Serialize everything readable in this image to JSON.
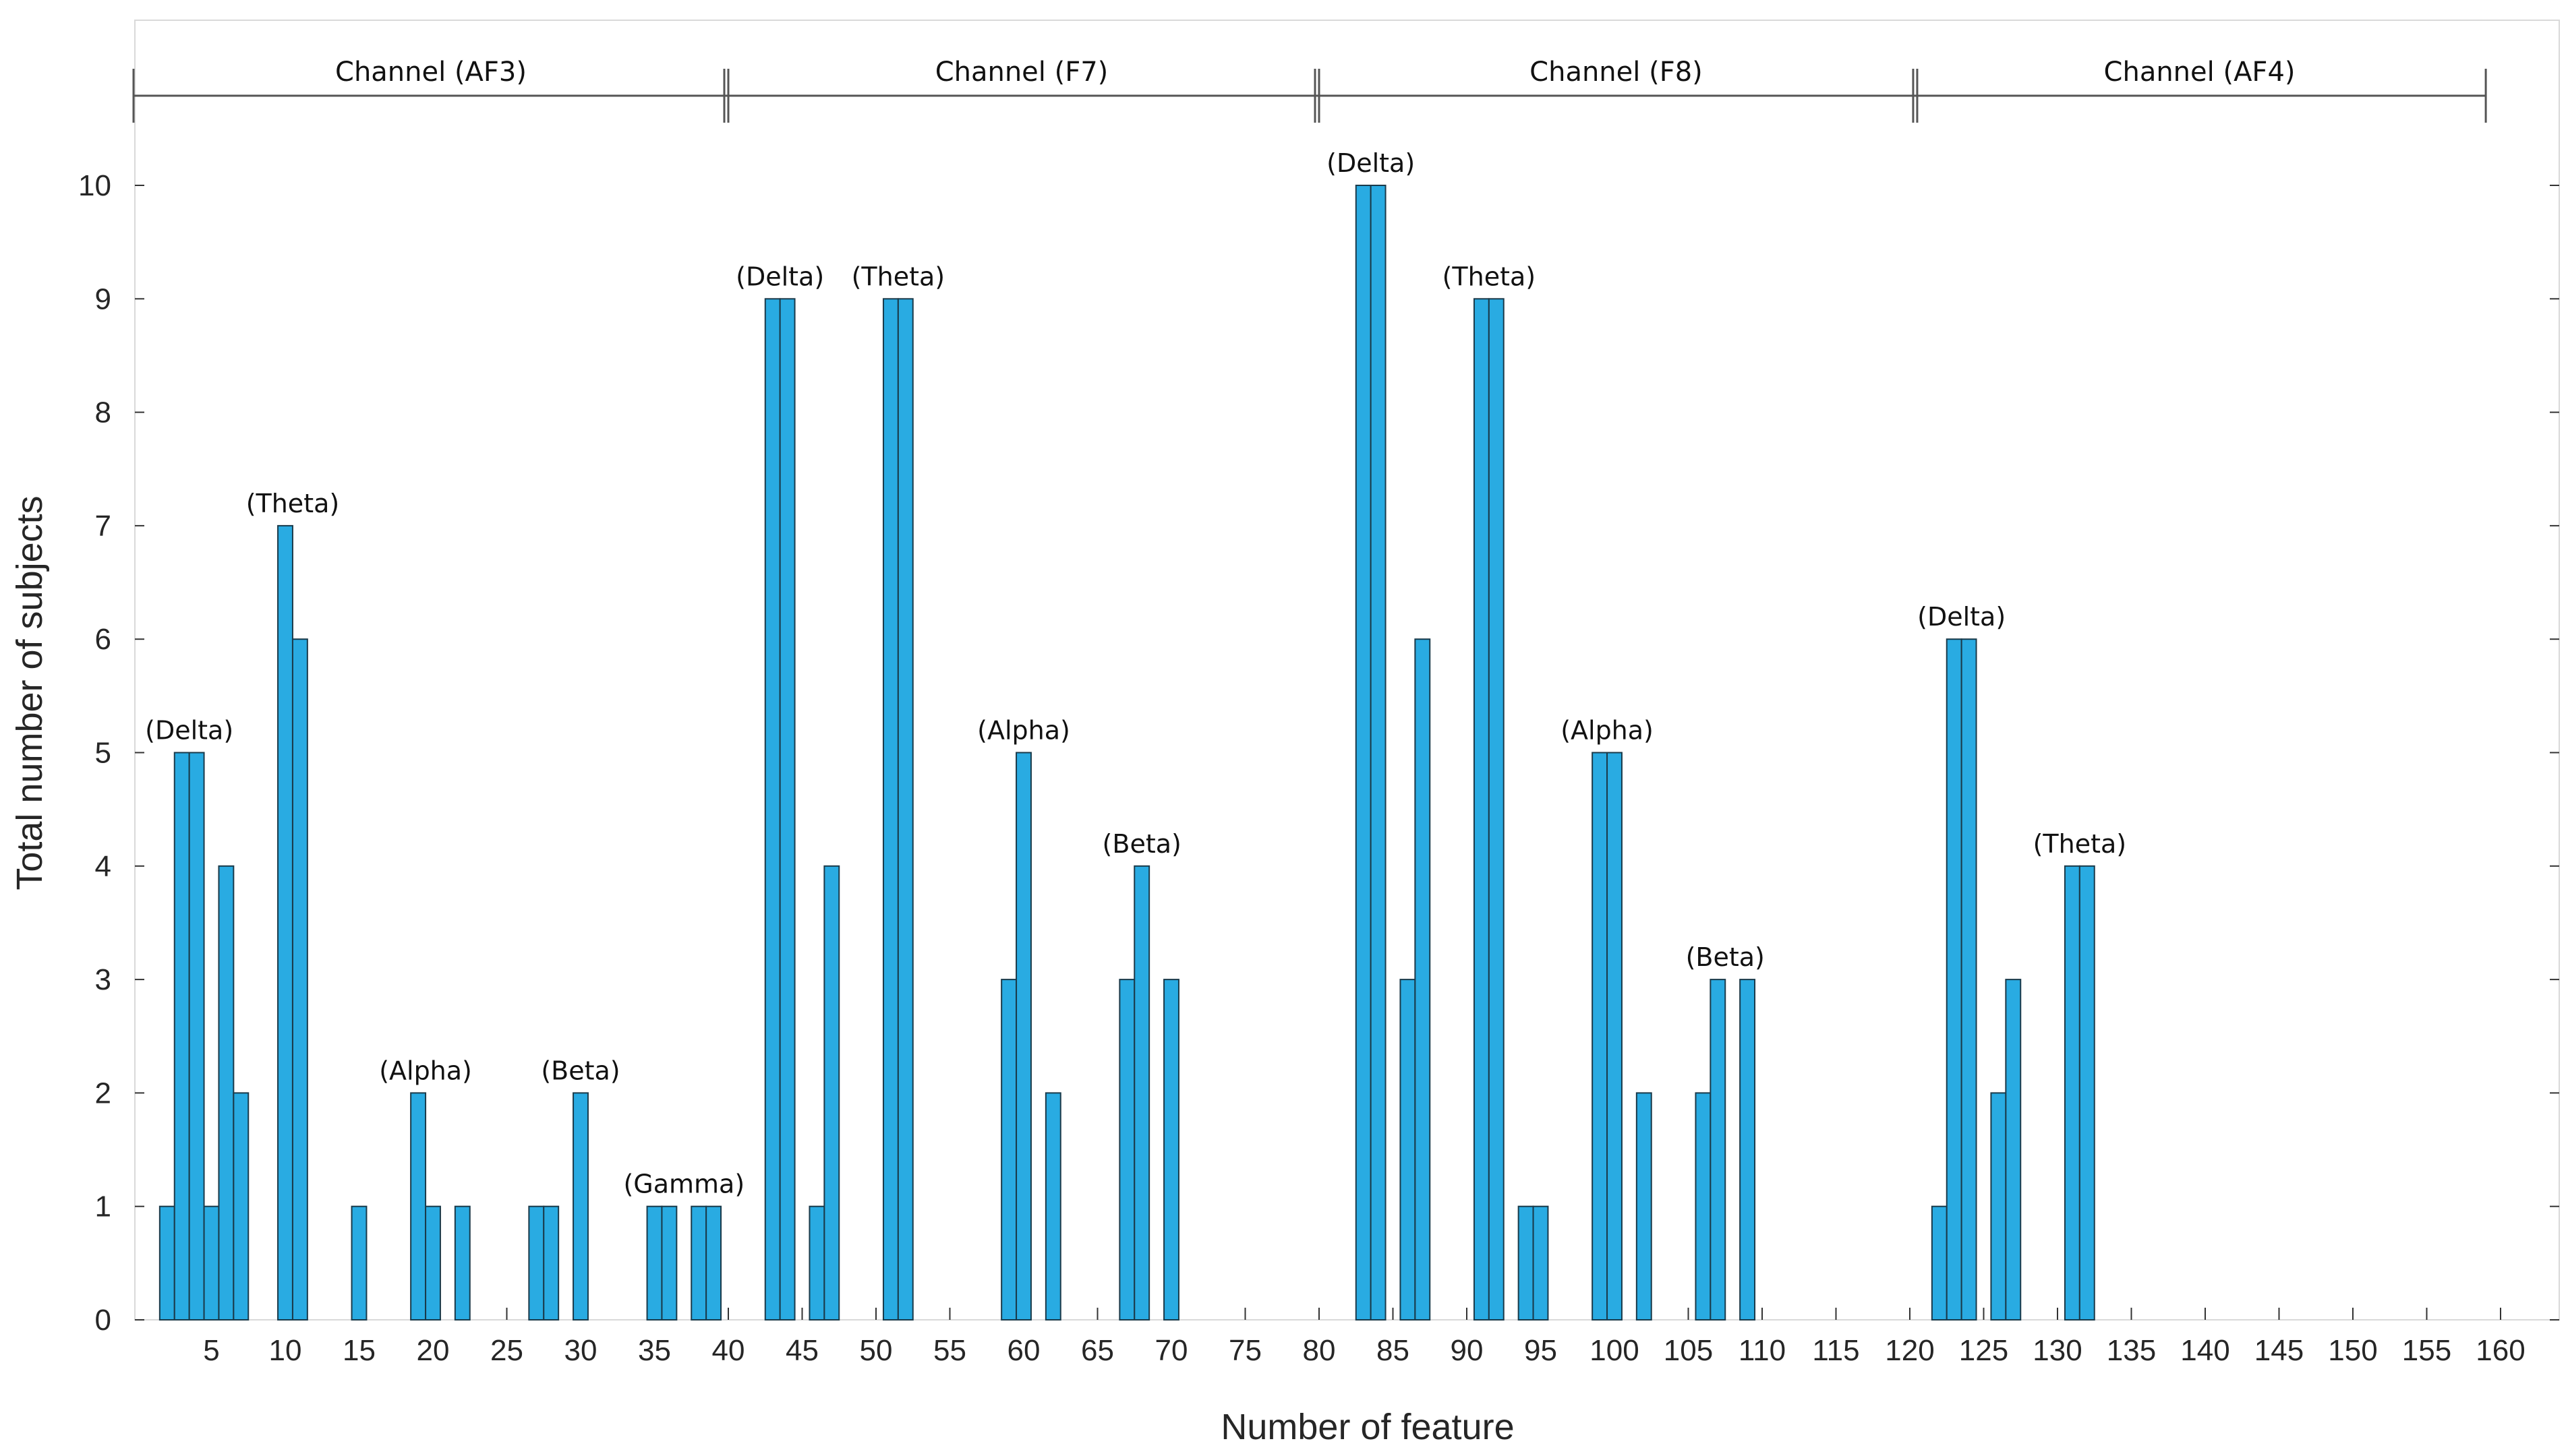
{
  "chart_data": {
    "type": "bar",
    "title": "",
    "xlabel": "Number of feature",
    "ylabel": "Total number of subjects",
    "xlim": [
      0,
      160
    ],
    "ylim": [
      0,
      11
    ],
    "xticks": [
      5,
      10,
      15,
      20,
      25,
      30,
      35,
      40,
      45,
      50,
      55,
      60,
      65,
      70,
      75,
      80,
      85,
      90,
      95,
      100,
      105,
      110,
      115,
      120,
      125,
      130,
      135,
      140,
      145,
      150,
      155,
      160
    ],
    "yticks": [
      0,
      1,
      2,
      3,
      4,
      5,
      6,
      7,
      8,
      9,
      10
    ],
    "bar_color": "#29abe2",
    "bar_edge_color": "#1a3a4a",
    "x": [
      2,
      3,
      4,
      5,
      6,
      7,
      10,
      11,
      15,
      19,
      20,
      22,
      27,
      28,
      30,
      35,
      36,
      38,
      39,
      43,
      44,
      46,
      47,
      51,
      52,
      59,
      60,
      62,
      67,
      68,
      70,
      83,
      84,
      86,
      87,
      91,
      92,
      94,
      95,
      99,
      100,
      102,
      106,
      107,
      109,
      122,
      123,
      124,
      126,
      127,
      131,
      132
    ],
    "values": [
      1,
      5,
      5,
      1,
      4,
      2,
      7,
      6,
      1,
      2,
      1,
      1,
      1,
      1,
      2,
      1,
      1,
      1,
      1,
      9,
      9,
      1,
      4,
      9,
      9,
      3,
      5,
      2,
      3,
      4,
      3,
      10,
      10,
      3,
      6,
      9,
      9,
      1,
      1,
      5,
      5,
      2,
      2,
      3,
      3,
      1,
      6,
      6,
      2,
      3,
      4,
      4
    ],
    "channels": [
      {
        "label": "Channel (AF3)",
        "range": [
          0,
          40
        ]
      },
      {
        "label": "Channel (F7)",
        "range": [
          40,
          80
        ]
      },
      {
        "label": "Channel (F8)",
        "range": [
          80,
          120.5
        ]
      },
      {
        "label": "Channel (AF4)",
        "range": [
          120.5,
          159
        ]
      }
    ],
    "annotations": [
      {
        "text": "(Delta)",
        "x": 3.5,
        "y": 5
      },
      {
        "text": "(Theta)",
        "x": 10.5,
        "y": 7
      },
      {
        "text": "(Alpha)",
        "x": 19.5,
        "y": 2
      },
      {
        "text": "(Beta)",
        "x": 30,
        "y": 2
      },
      {
        "text": "(Gamma)",
        "x": 37,
        "y": 1
      },
      {
        "text": "(Delta)",
        "x": 43.5,
        "y": 9
      },
      {
        "text": "(Theta)",
        "x": 51.5,
        "y": 9
      },
      {
        "text": "(Alpha)",
        "x": 60,
        "y": 5
      },
      {
        "text": "(Beta)",
        "x": 68,
        "y": 4
      },
      {
        "text": "(Delta)",
        "x": 83.5,
        "y": 10
      },
      {
        "text": "(Theta)",
        "x": 91.5,
        "y": 9
      },
      {
        "text": "(Alpha)",
        "x": 99.5,
        "y": 5
      },
      {
        "text": "(Beta)",
        "x": 107.5,
        "y": 3
      },
      {
        "text": "(Delta)",
        "x": 123.5,
        "y": 6
      },
      {
        "text": "(Theta)",
        "x": 131.5,
        "y": 4
      }
    ]
  }
}
